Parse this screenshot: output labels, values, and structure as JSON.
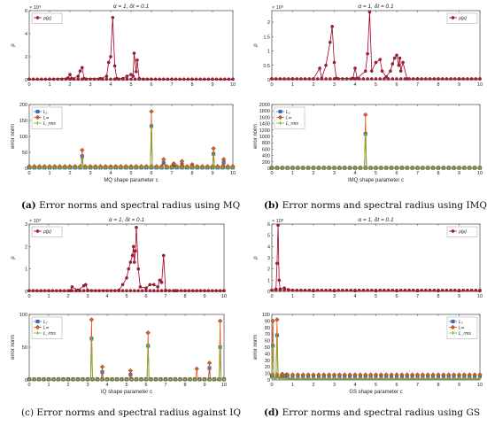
{
  "colors": {
    "rho": "#a3001f",
    "L2": "#2f6fb6",
    "Linf": "#e8591a",
    "Lrms": "#7fae2e",
    "frame": "#444",
    "markerFill": "#8b2d3a"
  },
  "chart_data": [
    {
      "id": "a-top",
      "type": "line",
      "title": "α = 1, δt = 0.1",
      "ylabel": "ρ",
      "exponent": "× 10⁹",
      "xlim": [
        0,
        10
      ],
      "ylim": [
        0,
        6
      ],
      "xticks": [
        0,
        1,
        2,
        3,
        4,
        5,
        6,
        7,
        8,
        9,
        10
      ],
      "yticks": [
        0,
        2,
        4,
        6
      ],
      "legend": {
        "position": "top-left",
        "entries": [
          "ρ(μ)"
        ]
      },
      "series": [
        {
          "name": "ρ(μ)",
          "color": "#a3001f",
          "x": [
            0,
            1,
            1.9,
            2.0,
            2.1,
            2.4,
            2.5,
            2.6,
            2.7,
            3.5,
            3.8,
            3.9,
            4.0,
            4.1,
            4.2,
            4.3,
            4.6,
            4.8,
            5.0,
            5.1,
            5.15,
            5.25,
            5.3,
            5.4,
            6,
            7,
            8,
            9,
            10
          ],
          "y": [
            0.05,
            0.05,
            0.15,
            0.45,
            0.1,
            0.3,
            0.75,
            1.05,
            0.1,
            0.1,
            0.3,
            1.5,
            2.0,
            5.4,
            1.2,
            0.1,
            0.1,
            0.3,
            0.45,
            0.3,
            2.3,
            0.7,
            1.7,
            0.1,
            0.05,
            0.05,
            0.05,
            0.05,
            0.05
          ]
        }
      ]
    },
    {
      "id": "a-bottom",
      "type": "line",
      "ylabel": "error norm",
      "xlabel": "MQ shape parameter c",
      "xlim": [
        0,
        10
      ],
      "ylim": [
        0,
        200
      ],
      "xticks": [
        0,
        1,
        2,
        3,
        4,
        5,
        6,
        7,
        8,
        9,
        10
      ],
      "yticks": [
        0,
        50,
        100,
        150,
        200
      ],
      "legend": {
        "position": "top-left",
        "entries": [
          "L₂",
          "L∞",
          "L_rms"
        ]
      },
      "series": [
        {
          "name": "L₂",
          "color": "#2f6fb6",
          "x": [
            0,
            2.55,
            2.6,
            2.65,
            5.95,
            6.0,
            6.05,
            6.5,
            6.6,
            6.7,
            7.0,
            7.1,
            7.2,
            7.4,
            7.5,
            7.6,
            9.0,
            9.05,
            9.1,
            9.5,
            9.55,
            9.6,
            10
          ],
          "y": [
            2,
            2,
            38,
            2,
            2,
            132,
            2,
            2,
            17,
            2,
            2,
            8,
            2,
            2,
            12,
            2,
            2,
            45,
            2,
            2,
            18,
            2,
            2
          ]
        },
        {
          "name": "L∞",
          "color": "#e8591a",
          "x": [
            0,
            2.55,
            2.6,
            2.65,
            5.95,
            6.0,
            6.05,
            6.5,
            6.6,
            6.7,
            7.0,
            7.1,
            7.2,
            7.4,
            7.5,
            7.6,
            7.9,
            8.0,
            8.1,
            9.0,
            9.05,
            9.1,
            9.5,
            9.55,
            9.6,
            10
          ],
          "y": [
            6,
            6,
            57,
            6,
            6,
            178,
            6,
            6,
            28,
            6,
            6,
            15,
            6,
            6,
            22,
            6,
            6,
            12,
            6,
            6,
            62,
            6,
            6,
            28,
            6,
            6
          ]
        },
        {
          "name": "L_rms",
          "color": "#7fae2e",
          "x": [
            0,
            2.55,
            2.6,
            2.65,
            5.95,
            6.0,
            6.05,
            9.0,
            9.05,
            9.1,
            10
          ],
          "y": [
            1,
            1,
            30,
            1,
            1,
            128,
            1,
            1,
            40,
            1,
            1
          ]
        }
      ]
    },
    {
      "id": "b-top",
      "type": "line",
      "title": "α = 1, δt = 0.1",
      "ylabel": "ρ",
      "exponent": "× 10⁹",
      "xlim": [
        0,
        10
      ],
      "ylim": [
        0,
        2.4
      ],
      "xticks": [
        0,
        1,
        2,
        3,
        4,
        5,
        6,
        7,
        8,
        9,
        10
      ],
      "yticks": [
        0,
        0.5,
        1,
        1.5,
        2
      ],
      "legend": {
        "position": "top-right",
        "entries": [
          "ρ(μ)"
        ]
      },
      "series": [
        {
          "name": "ρ(μ)",
          "color": "#a3001f",
          "x": [
            0,
            1,
            2,
            2.3,
            2.4,
            2.6,
            2.8,
            2.9,
            3.0,
            3.1,
            3.9,
            4.0,
            4.1,
            4.5,
            4.6,
            4.7,
            4.8,
            5.0,
            5.2,
            5.3,
            5.5,
            5.7,
            5.8,
            5.9,
            6.0,
            6.1,
            6.15,
            6.2,
            6.3,
            6.5,
            7,
            8,
            9,
            10
          ],
          "y": [
            0.03,
            0.03,
            0.03,
            0.4,
            0.05,
            0.5,
            1.3,
            1.85,
            0.6,
            0.05,
            0.05,
            0.4,
            0.05,
            0.3,
            0.9,
            2.35,
            0.3,
            0.6,
            0.7,
            0.3,
            0.1,
            0.3,
            0.55,
            0.75,
            0.85,
            0.5,
            0.75,
            0.3,
            0.6,
            0.03,
            0.03,
            0.03,
            0.03,
            0.03
          ]
        }
      ]
    },
    {
      "id": "b-bottom",
      "type": "line",
      "ylabel": "error norm",
      "xlabel": "IMQ shape parameter c",
      "xlim": [
        0,
        10
      ],
      "ylim": [
        0,
        2000
      ],
      "xticks": [
        0,
        1,
        2,
        3,
        4,
        5,
        6,
        7,
        8,
        9,
        10
      ],
      "yticks": [
        0,
        200,
        400,
        600,
        800,
        1000,
        1200,
        1400,
        1600,
        1800,
        2000
      ],
      "legend": {
        "position": "top-left",
        "entries": [
          "L₂",
          "L∞",
          "L_rms"
        ]
      },
      "series": [
        {
          "name": "L₂",
          "color": "#2f6fb6",
          "x": [
            0,
            4.45,
            4.5,
            4.55,
            10
          ],
          "y": [
            10,
            10,
            1080,
            10,
            10
          ]
        },
        {
          "name": "L∞",
          "color": "#e8591a",
          "x": [
            0,
            4.45,
            4.5,
            4.55,
            10
          ],
          "y": [
            20,
            20,
            1680,
            20,
            20
          ]
        },
        {
          "name": "L_rms",
          "color": "#7fae2e",
          "x": [
            0,
            4.45,
            4.5,
            4.55,
            10
          ],
          "y": [
            5,
            5,
            1060,
            5,
            5
          ]
        }
      ]
    },
    {
      "id": "c-top",
      "type": "line",
      "title": "α = 1, δt = 0.1",
      "ylabel": "ρ",
      "exponent": "× 10⁹",
      "xlim": [
        0,
        10
      ],
      "ylim": [
        0,
        3
      ],
      "xticks": [
        0,
        1,
        2,
        3,
        4,
        5,
        6,
        7,
        8,
        9,
        10
      ],
      "yticks": [
        0,
        1,
        2,
        3
      ],
      "legend": {
        "position": "top-left",
        "entries": [
          "ρ(μ)"
        ]
      },
      "series": [
        {
          "name": "ρ(μ)",
          "color": "#a3001f",
          "x": [
            0,
            1,
            2.1,
            2.2,
            2.5,
            2.8,
            2.9,
            3.0,
            4.6,
            4.8,
            5.0,
            5.1,
            5.2,
            5.3,
            5.35,
            5.4,
            5.45,
            5.5,
            5.6,
            5.7,
            6.0,
            6.2,
            6.4,
            6.6,
            6.7,
            6.8,
            6.9,
            7.0,
            7.5,
            8,
            9,
            10
          ],
          "y": [
            0.03,
            0.03,
            0.03,
            0.2,
            0.05,
            0.25,
            0.3,
            0.05,
            0.05,
            0.3,
            0.6,
            1.0,
            1.3,
            1.6,
            2.0,
            1.3,
            1.8,
            2.85,
            1.0,
            0.2,
            0.15,
            0.3,
            0.3,
            0.2,
            0.5,
            0.4,
            1.6,
            0.05,
            0.03,
            0.03,
            0.03,
            0.03
          ]
        }
      ]
    },
    {
      "id": "c-bottom",
      "type": "line",
      "ylabel": "error norm",
      "xlabel": "IQ shape parameter c",
      "xlim": [
        0,
        10
      ],
      "ylim": [
        0,
        100
      ],
      "xticks": [
        0,
        1,
        2,
        3,
        4,
        5,
        6,
        7,
        8,
        9,
        10
      ],
      "yticks": [
        0,
        50,
        100
      ],
      "legend": {
        "position": "top-left",
        "entries": [
          "L₂",
          "L∞",
          "L_rms"
        ]
      },
      "series": [
        {
          "name": "L₂",
          "color": "#2f6fb6",
          "x": [
            0,
            3.15,
            3.2,
            3.25,
            3.7,
            3.75,
            3.8,
            5.15,
            5.2,
            5.25,
            6.05,
            6.1,
            6.15,
            9.2,
            9.25,
            9.3,
            9.75,
            9.8,
            9.85,
            10
          ],
          "y": [
            1,
            1,
            63,
            1,
            1,
            12,
            1,
            1,
            8,
            1,
            1,
            52,
            1,
            1,
            18,
            1,
            1,
            50,
            1,
            1
          ]
        },
        {
          "name": "L∞",
          "color": "#e8591a",
          "x": [
            0,
            3.15,
            3.2,
            3.25,
            3.7,
            3.75,
            3.8,
            5.15,
            5.2,
            5.25,
            6.05,
            6.1,
            6.15,
            8.55,
            8.6,
            8.65,
            9.2,
            9.25,
            9.3,
            9.75,
            9.8,
            9.85,
            10
          ],
          "y": [
            1,
            1,
            92,
            1,
            1,
            20,
            1,
            1,
            14,
            1,
            1,
            72,
            1,
            1,
            17,
            1,
            1,
            26,
            1,
            1,
            90,
            1,
            1
          ]
        },
        {
          "name": "L_rms",
          "color": "#7fae2e",
          "x": [
            0,
            3.15,
            3.2,
            3.25,
            6.05,
            6.1,
            6.15,
            9.75,
            9.8,
            9.85,
            10
          ],
          "y": [
            0.5,
            0.5,
            62,
            0.5,
            0.5,
            52,
            0.5,
            0.5,
            50,
            0.5,
            0.5
          ]
        }
      ]
    },
    {
      "id": "d-top",
      "type": "line",
      "title": "α = 1, δt = 0.1",
      "ylabel": "ρ",
      "exponent": "× 10⁸",
      "xlim": [
        0,
        10
      ],
      "ylim": [
        0,
        6
      ],
      "xticks": [
        0,
        1,
        2,
        3,
        4,
        5,
        6,
        7,
        8,
        9,
        10
      ],
      "yticks": [
        0,
        1,
        2,
        3,
        4,
        5,
        6
      ],
      "legend": {
        "position": "top-right",
        "entries": [
          "ρ(μ)"
        ]
      },
      "series": [
        {
          "name": "ρ(μ)",
          "color": "#a3001f",
          "x": [
            0,
            0.2,
            0.25,
            0.3,
            0.35,
            0.4,
            0.6,
            0.8,
            1,
            2,
            3,
            4,
            5,
            6,
            7,
            8,
            9,
            10
          ],
          "y": [
            0.1,
            0.2,
            2.5,
            5.9,
            1.0,
            0.2,
            0.3,
            0.15,
            0.1,
            0.05,
            0.05,
            0.05,
            0.05,
            0.05,
            0.05,
            0.05,
            0.05,
            0.05
          ]
        }
      ]
    },
    {
      "id": "d-bottom",
      "type": "line",
      "ylabel": "error norm",
      "xlabel": "GS shape parameter c",
      "xlim": [
        0,
        10
      ],
      "ylim": [
        0,
        100
      ],
      "xticks": [
        0,
        1,
        2,
        3,
        4,
        5,
        6,
        7,
        8,
        9,
        10
      ],
      "yticks": [
        0,
        10,
        20,
        30,
        40,
        50,
        60,
        70,
        80,
        90,
        100
      ],
      "legend": {
        "position": "top-right",
        "entries": [
          "L₂",
          "L∞",
          "L_rms"
        ]
      },
      "series": [
        {
          "name": "L₂",
          "color": "#2f6fb6",
          "x": [
            0,
            0.05,
            0.1,
            0.15,
            0.2,
            0.25,
            0.3,
            0.35,
            0.4,
            0.5,
            0.6,
            0.7,
            0.8,
            1,
            2,
            3,
            4,
            5,
            6,
            7,
            8,
            9,
            10
          ],
          "y": [
            5,
            52,
            3,
            2,
            3,
            68,
            5,
            2,
            4,
            6,
            3,
            5,
            2,
            1,
            1,
            1,
            1,
            1,
            1,
            1,
            1,
            1,
            1
          ]
        },
        {
          "name": "L∞",
          "color": "#e8591a",
          "x": [
            0,
            0.05,
            0.1,
            0.15,
            0.2,
            0.25,
            0.3,
            0.35,
            0.4,
            0.5,
            0.6,
            0.7,
            0.8,
            1,
            2,
            3,
            4,
            5,
            6,
            7,
            8,
            9,
            10
          ],
          "y": [
            8,
            90,
            6,
            4,
            6,
            92,
            8,
            3,
            7,
            9,
            5,
            8,
            3,
            2,
            2,
            2,
            2,
            2,
            2,
            2,
            2,
            2,
            2
          ]
        },
        {
          "name": "L_rms",
          "color": "#7fae2e",
          "x": [
            0,
            0.05,
            0.1,
            0.15,
            0.2,
            0.25,
            0.3,
            0.35,
            0.4,
            1,
            2,
            5,
            10
          ],
          "y": [
            3,
            50,
            2,
            1,
            2,
            66,
            3,
            1,
            2,
            0.5,
            0.5,
            0.5,
            0.5
          ]
        }
      ]
    }
  ],
  "captions": {
    "a": {
      "label": "(a)",
      "text": "Error norms and spectral radius using MQ"
    },
    "b": {
      "label": "(b)",
      "text": "Error norms and spectral radius using IMQ"
    },
    "c": {
      "label": "(c)",
      "text": "Error norms and spectral radius against IQ"
    },
    "d": {
      "label": "(d)",
      "text": "Error norms and spectral radius using GS"
    }
  }
}
